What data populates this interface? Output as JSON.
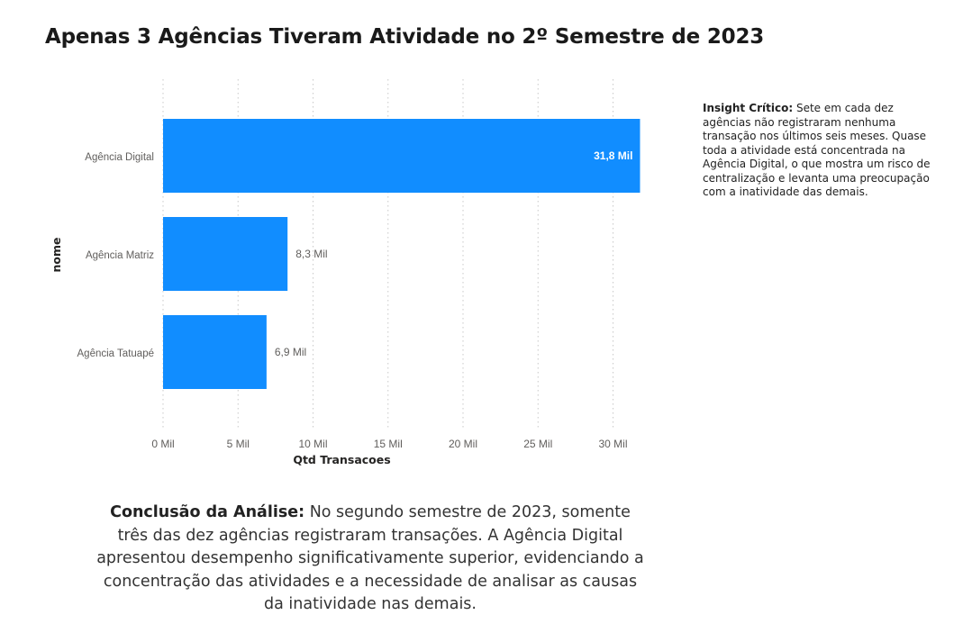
{
  "title": "Apenas 3 Agências Tiveram Atividade no 2º Semestre de 2023",
  "insight": {
    "label": "Insight Crítico:",
    "text": " Sete em cada dez agências não registraram nenhuma transação nos últimos seis meses. Quase toda a atividade está concentrada na Agência Digital, o que mostra um risco de centralização e levanta uma preocupação com a inatividade das demais."
  },
  "conclusion": {
    "label": "Conclusão da Análise:",
    "text": " No segundo semestre de 2023, somente três das dez agências registraram transações. A Agência Digital apresentou desempenho significativamente superior, evidenciando a concentração das atividades e a necessidade de analisar as causas da inatividade nas demais."
  },
  "colors": {
    "bar": "#118DFF",
    "grid": "#c8c8c8",
    "axis_text": "#605e5c"
  },
  "chart_data": {
    "type": "bar",
    "orientation": "horizontal",
    "categories": [
      "Agência Digital",
      "Agência Matriz",
      "Agência Tatuapé"
    ],
    "values": [
      31.8,
      8.3,
      6.9
    ],
    "data_labels": [
      "31,8 Mil",
      "8,3 Mil",
      "6,9 Mil"
    ],
    "xlabel": "Qtd Transacoes",
    "ylabel": "nome",
    "xlim": [
      0,
      32
    ],
    "xticks": [
      0,
      5,
      10,
      15,
      20,
      25,
      30
    ],
    "xtick_labels": [
      "0 Mil",
      "5 Mil",
      "10 Mil",
      "15 Mil",
      "20 Mil",
      "25 Mil",
      "30 Mil"
    ],
    "grid": true
  }
}
